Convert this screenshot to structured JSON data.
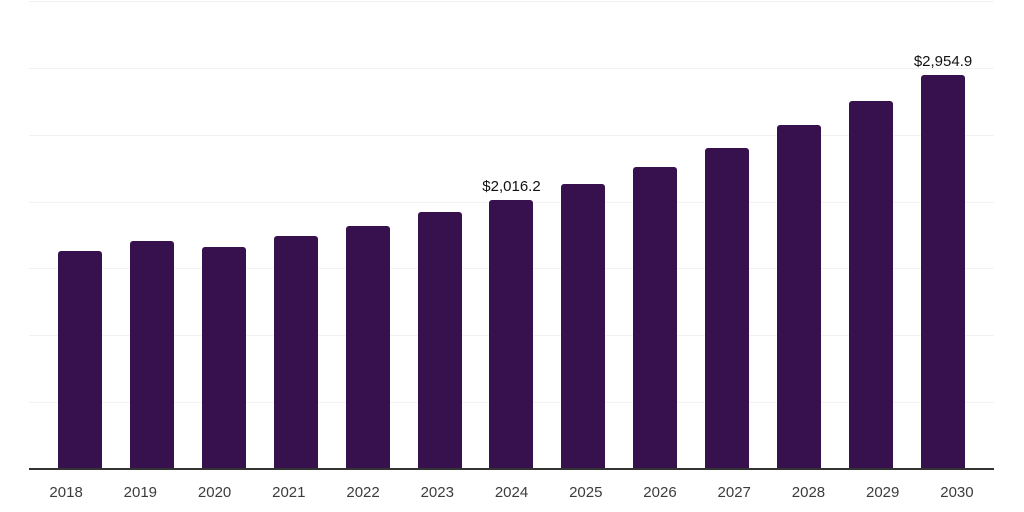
{
  "chart_data": {
    "type": "bar",
    "title": "",
    "xlabel": "",
    "ylabel": "",
    "categories": [
      "2018",
      "2019",
      "2020",
      "2021",
      "2022",
      "2023",
      "2024",
      "2025",
      "2026",
      "2027",
      "2028",
      "2029",
      "2030"
    ],
    "values": [
      1640,
      1715,
      1665,
      1750,
      1825,
      1930,
      2016.2,
      2140,
      2265,
      2405,
      2580,
      2760,
      2954.9
    ],
    "point_labels": [
      "",
      "",
      "",
      "",
      "",
      "",
      "$2,016.2",
      "",
      "",
      "",
      "",
      "",
      "$2,954.9"
    ],
    "ylim": [
      0,
      3500
    ],
    "gridline_step": 500,
    "grid": "horizontal-only",
    "legend_position": "none",
    "colors": {
      "bar": "#36114e",
      "gridline": "#f2f2f2",
      "axis_line": "#333333",
      "tick_label": "#3c3c3c",
      "value_label": "#111111",
      "background": "#ffffff"
    }
  }
}
